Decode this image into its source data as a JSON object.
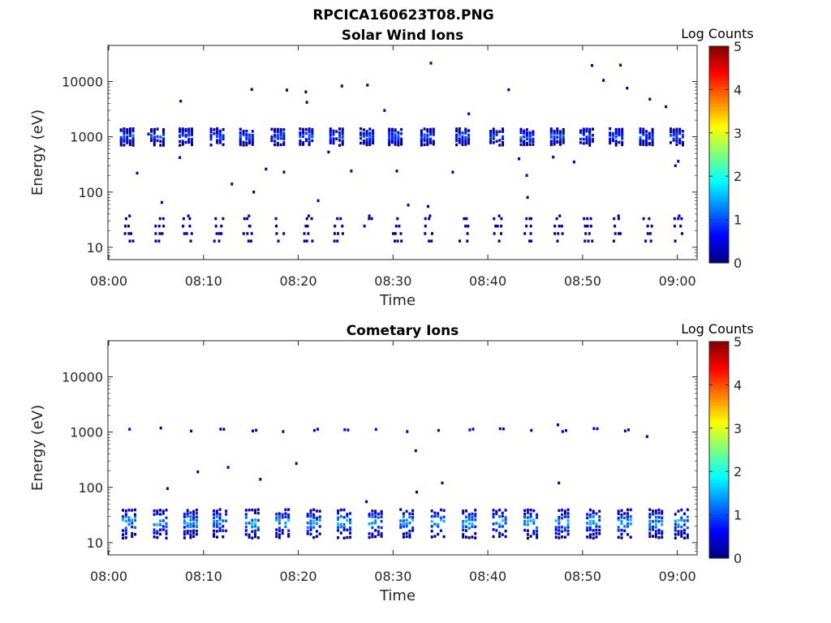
{
  "figure_title": "RPCICA160623T08.PNG",
  "colors": {
    "axis": "#262626",
    "colormap": [
      "#00007f",
      "#0000ff",
      "#007fff",
      "#00ffff",
      "#7fff7f",
      "#ffff00",
      "#ff7f00",
      "#ff0000",
      "#7f0000"
    ]
  },
  "chart_data": [
    {
      "type": "heatmap",
      "title": "Solar Wind Ions",
      "xlabel": "Time",
      "ylabel": "Energy (eV)",
      "x_tick_labels": [
        "08:00",
        "08:10",
        "08:20",
        "08:30",
        "08:40",
        "08:50",
        "09:00"
      ],
      "xlim": [
        "08:00",
        "09:02"
      ],
      "y_scale": "log",
      "ylim": [
        6,
        45000
      ],
      "y_tick_values": [
        10,
        100,
        1000,
        10000
      ],
      "y_tick_labels": [
        "10",
        "100",
        "1000",
        "10000"
      ],
      "colorbar": {
        "label": "Log Counts",
        "range": [
          0,
          5
        ],
        "tick_labels": [
          "0",
          "1",
          "2",
          "3",
          "4",
          "5"
        ]
      },
      "sweep_times_min": [
        2.0,
        5.2,
        8.2,
        11.5,
        14.6,
        17.9,
        20.9,
        24.1,
        27.3,
        30.3,
        33.7,
        37.4,
        41.0,
        44.2,
        47.4,
        50.5,
        53.6,
        56.8,
        60.0
      ],
      "ion_band": {
        "center_eV": 1000,
        "low_eV": 700,
        "high_eV": 1450,
        "peak_log_counts": 1.3
      },
      "low_energy_band": {
        "low_eV": 13,
        "high_eV": 33,
        "log_counts": 0.2
      },
      "isolated_counts": [
        {
          "t": 3.0,
          "e": 220
        },
        {
          "t": 4.2,
          "e": 1120
        },
        {
          "t": 5.6,
          "e": 65
        },
        {
          "t": 7.6,
          "e": 4400
        },
        {
          "t": 7.5,
          "e": 420
        },
        {
          "t": 13.0,
          "e": 140
        },
        {
          "t": 15.1,
          "e": 7200
        },
        {
          "t": 15.3,
          "e": 100
        },
        {
          "t": 16.6,
          "e": 260
        },
        {
          "t": 18.5,
          "e": 230
        },
        {
          "t": 18.8,
          "e": 7000
        },
        {
          "t": 20.8,
          "e": 6500
        },
        {
          "t": 20.9,
          "e": 4200
        },
        {
          "t": 22.1,
          "e": 70
        },
        {
          "t": 23.2,
          "e": 530
        },
        {
          "t": 24.6,
          "e": 8300
        },
        {
          "t": 25.6,
          "e": 240
        },
        {
          "t": 27.3,
          "e": 8600
        },
        {
          "t": 29.1,
          "e": 3000
        },
        {
          "t": 30.4,
          "e": 240
        },
        {
          "t": 31.6,
          "e": 58
        },
        {
          "t": 34.0,
          "e": 21500
        },
        {
          "t": 33.7,
          "e": 55
        },
        {
          "t": 36.3,
          "e": 230
        },
        {
          "t": 38.0,
          "e": 2600
        },
        {
          "t": 42.2,
          "e": 7100
        },
        {
          "t": 43.3,
          "e": 400
        },
        {
          "t": 44.1,
          "e": 200
        },
        {
          "t": 44.2,
          "e": 80
        },
        {
          "t": 46.9,
          "e": 430
        },
        {
          "t": 49.1,
          "e": 350
        },
        {
          "t": 51.0,
          "e": 19500
        },
        {
          "t": 52.2,
          "e": 10500
        },
        {
          "t": 54.0,
          "e": 19800
        },
        {
          "t": 54.7,
          "e": 7600
        },
        {
          "t": 57.1,
          "e": 4800
        },
        {
          "t": 58.8,
          "e": 3500
        },
        {
          "t": 59.8,
          "e": 300
        },
        {
          "t": 60.1,
          "e": 360
        }
      ]
    },
    {
      "type": "heatmap",
      "title": "Cometary Ions",
      "xlabel": "Time",
      "ylabel": "Energy (eV)",
      "x_tick_labels": [
        "08:00",
        "08:10",
        "08:20",
        "08:30",
        "08:40",
        "08:50",
        "09:00"
      ],
      "xlim": [
        "08:00",
        "09:02"
      ],
      "y_scale": "log",
      "ylim": [
        6,
        45000
      ],
      "y_tick_values": [
        10,
        100,
        1000,
        10000
      ],
      "y_tick_labels": [
        "10",
        "100",
        "1000",
        "10000"
      ],
      "colorbar": {
        "label": "Log Counts",
        "range": [
          0,
          5
        ],
        "tick_labels": [
          "0",
          "1",
          "2",
          "3",
          "4",
          "5"
        ]
      },
      "sweep_times_min": [
        2.2,
        5.5,
        8.7,
        11.8,
        15.2,
        18.4,
        21.7,
        24.9,
        28.2,
        31.5,
        34.8,
        38.1,
        41.3,
        44.6,
        47.9,
        51.2,
        54.5,
        57.8,
        60.5
      ],
      "ion_band": {
        "low_eV": 12,
        "high_eV": 42,
        "peak_log_counts": 1.8
      },
      "upper_band": {
        "center_eV": 1100,
        "log_counts": 0.4
      },
      "isolated_counts": [
        {
          "t": 6.2,
          "e": 95
        },
        {
          "t": 9.4,
          "e": 190
        },
        {
          "t": 12.6,
          "e": 230
        },
        {
          "t": 16.0,
          "e": 140
        },
        {
          "t": 19.8,
          "e": 270
        },
        {
          "t": 27.2,
          "e": 55
        },
        {
          "t": 32.4,
          "e": 460
        },
        {
          "t": 32.5,
          "e": 82
        },
        {
          "t": 35.2,
          "e": 120
        },
        {
          "t": 47.4,
          "e": 1350
        },
        {
          "t": 47.5,
          "e": 120
        },
        {
          "t": 56.8,
          "e": 830
        }
      ]
    }
  ]
}
